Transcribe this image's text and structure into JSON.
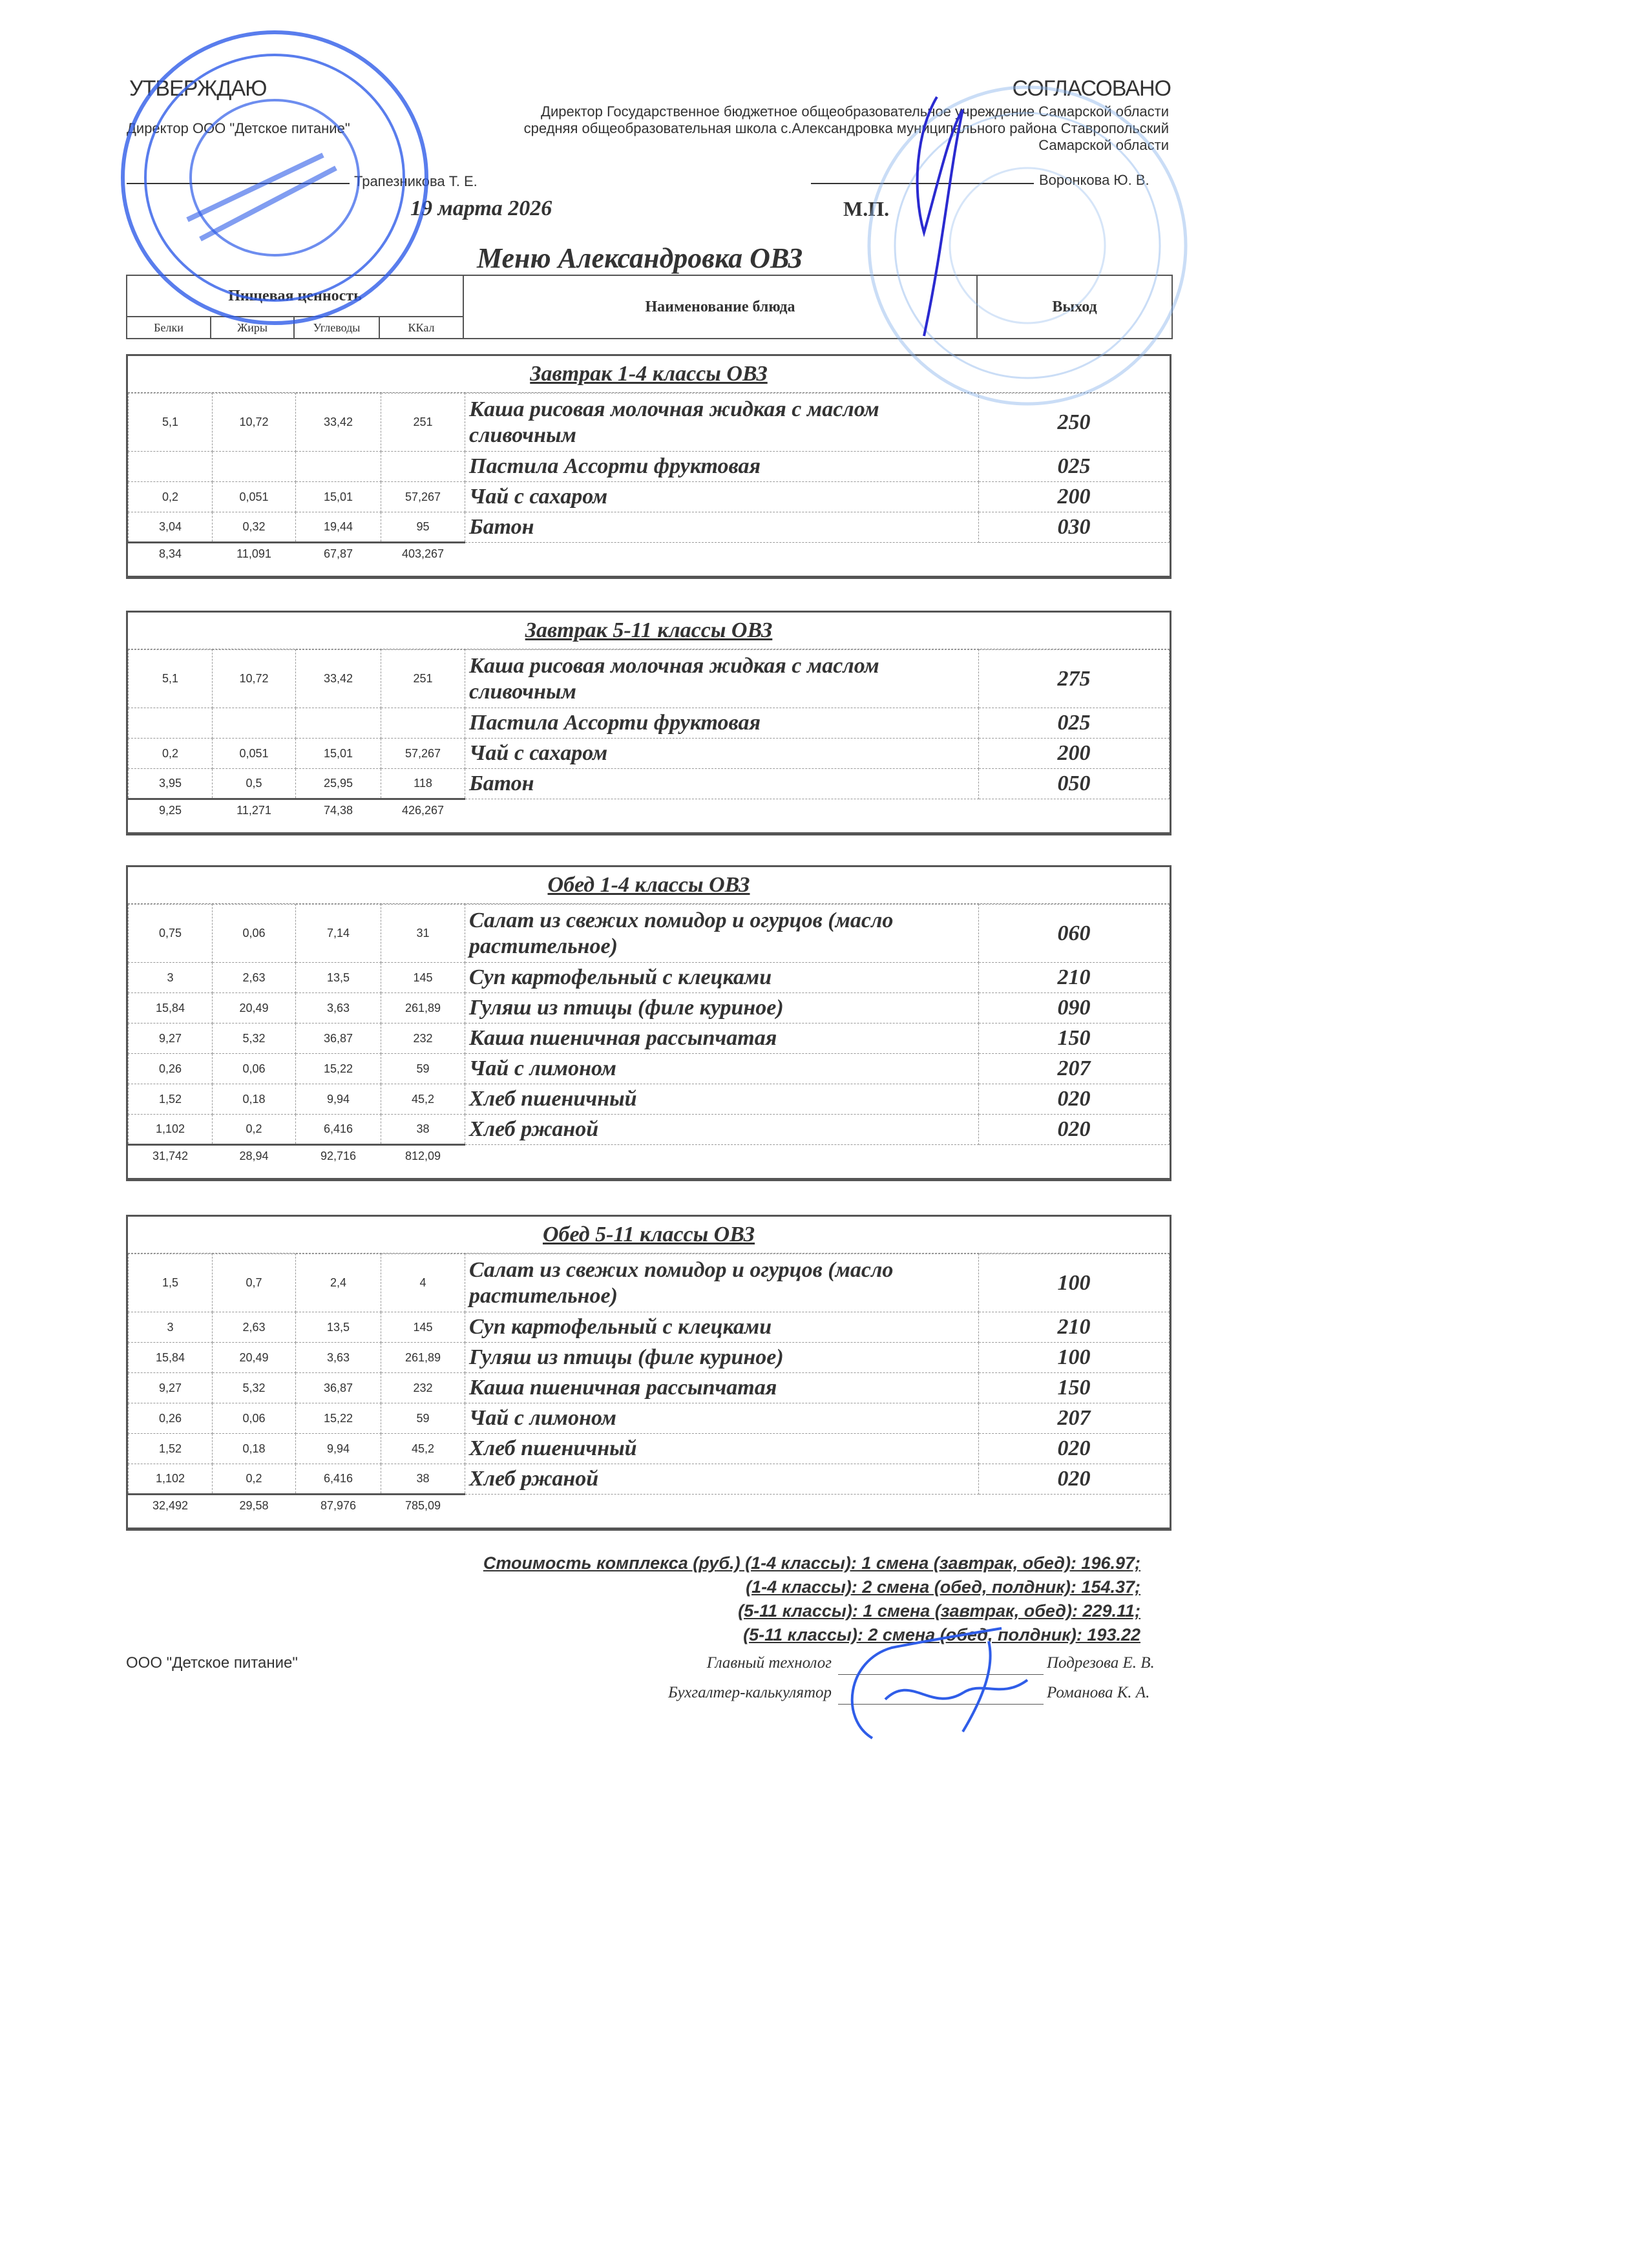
{
  "approve": {
    "title": "УТВЕРЖДАЮ",
    "role": "Директор ООО \"Детское питание\"",
    "name": "Трапезникова Т. Е.",
    "date": "19 марта 2026"
  },
  "agree": {
    "title": "СОГЛАСОВАНО",
    "role": "Директор Государственное бюджетное общеобразовательное учреждение Самарской области средняя общеобразовательная школа с.Александровка муниципального района Ставропольский Самарской области",
    "name": "Воронкова Ю. В.",
    "stamp_mark": "М.П."
  },
  "menu_title": "Меню Александровка ОВЗ",
  "header": {
    "nutrition": "Пищевая ценность",
    "dish": "Наименование блюда",
    "output": "Выход",
    "cols": [
      "Белки",
      "Жиры",
      "Углеводы",
      "ККал"
    ]
  },
  "sections": [
    {
      "title": "Завтрак 1-4 классы ОВЗ",
      "rows": [
        {
          "b": "5,1",
          "f": "10,72",
          "c": "33,42",
          "k": "251",
          "name": "Каша  рисовая  молочная жидкая с маслом сливочным",
          "out": "250"
        },
        {
          "b": "",
          "f": "",
          "c": "",
          "k": "",
          "name": "Пастила Ассорти фруктовая",
          "out": "025"
        },
        {
          "b": "0,2",
          "f": "0,051",
          "c": "15,01",
          "k": "57,267",
          "name": "Чай с сахаром",
          "out": "200"
        },
        {
          "b": "3,04",
          "f": "0,32",
          "c": "19,44",
          "k": "95",
          "name": "Батон",
          "out": "030"
        }
      ],
      "total": {
        "b": "8,34",
        "f": "11,091",
        "c": "67,87",
        "k": "403,267"
      }
    },
    {
      "title": "Завтрак 5-11 классы ОВЗ",
      "rows": [
        {
          "b": "5,1",
          "f": "10,72",
          "c": "33,42",
          "k": "251",
          "name": "Каша  рисовая  молочная жидкая с маслом сливочным",
          "out": "275"
        },
        {
          "b": "",
          "f": "",
          "c": "",
          "k": "",
          "name": "Пастила Ассорти фруктовая",
          "out": "025"
        },
        {
          "b": "0,2",
          "f": "0,051",
          "c": "15,01",
          "k": "57,267",
          "name": "Чай с сахаром",
          "out": "200"
        },
        {
          "b": "3,95",
          "f": "0,5",
          "c": "25,95",
          "k": "118",
          "name": "Батон",
          "out": "050"
        }
      ],
      "total": {
        "b": "9,25",
        "f": "11,271",
        "c": "74,38",
        "k": "426,267"
      }
    },
    {
      "title": "Обед 1-4 классы ОВЗ",
      "rows": [
        {
          "b": "0,75",
          "f": "0,06",
          "c": "7,14",
          "k": "31",
          "name": "Салат из свежих помидор и огурцов (масло растительное)",
          "out": "060"
        },
        {
          "b": "3",
          "f": "2,63",
          "c": "13,5",
          "k": "145",
          "name": "Суп картофельный с клецками",
          "out": "210"
        },
        {
          "b": "15,84",
          "f": "20,49",
          "c": "3,63",
          "k": "261,89",
          "name": "Гуляш из птицы (филе куриное)",
          "out": "090"
        },
        {
          "b": "9,27",
          "f": "5,32",
          "c": "36,87",
          "k": "232",
          "name": "Каша пшеничная рассыпчатая",
          "out": "150"
        },
        {
          "b": "0,26",
          "f": "0,06",
          "c": "15,22",
          "k": "59",
          "name": "Чай с лимоном",
          "out": "207"
        },
        {
          "b": "1,52",
          "f": "0,18",
          "c": "9,94",
          "k": "45,2",
          "name": "Хлеб пшеничный",
          "out": "020"
        },
        {
          "b": "1,102",
          "f": "0,2",
          "c": "6,416",
          "k": "38",
          "name": "Хлеб ржаной",
          "out": "020"
        }
      ],
      "total": {
        "b": "31,742",
        "f": "28,94",
        "c": "92,716",
        "k": "812,09"
      }
    },
    {
      "title": "Обед 5-11 классы ОВЗ",
      "rows": [
        {
          "b": "1,5",
          "f": "0,7",
          "c": "2,4",
          "k": "4",
          "name": "Салат из свежих помидор и огурцов (масло растительное)",
          "out": "100"
        },
        {
          "b": "3",
          "f": "2,63",
          "c": "13,5",
          "k": "145",
          "name": "Суп картофельный с клецками",
          "out": "210"
        },
        {
          "b": "15,84",
          "f": "20,49",
          "c": "3,63",
          "k": "261,89",
          "name": "Гуляш из птицы (филе куриное)",
          "out": "100"
        },
        {
          "b": "9,27",
          "f": "5,32",
          "c": "36,87",
          "k": "232",
          "name": "Каша пшеничная рассыпчатая",
          "out": "150"
        },
        {
          "b": "0,26",
          "f": "0,06",
          "c": "15,22",
          "k": "59",
          "name": "Чай с лимоном",
          "out": "207"
        },
        {
          "b": "1,52",
          "f": "0,18",
          "c": "9,94",
          "k": "45,2",
          "name": "Хлеб пшеничный",
          "out": "020"
        },
        {
          "b": "1,102",
          "f": "0,2",
          "c": "6,416",
          "k": "38",
          "name": "Хлеб ржаной",
          "out": "020"
        }
      ],
      "total": {
        "b": "32,492",
        "f": "29,58",
        "c": "87,976",
        "k": "785,09"
      }
    }
  ],
  "cost_lines": [
    "Стоимость комплекса (руб.) (1-4 классы): 1 смена (завтрак, обед): 196.97;",
    "(1-4 классы): 2 смена (обед, полдник): 154.37;",
    "(5-11 классы): 1 смена (завтрак, обед): 229.11;",
    "(5-11 классы): 2 смена (обед, полдник): 193.22"
  ],
  "company": "ООО \"Детское питание\"",
  "signers": [
    {
      "role": "Главный технолог",
      "name": "Подрезова Е. В."
    },
    {
      "role": "Бухгалтер-калькулятор",
      "name": "Романова К. А."
    }
  ],
  "colors": {
    "stamp": "#2f5de8",
    "text": "#333333"
  }
}
